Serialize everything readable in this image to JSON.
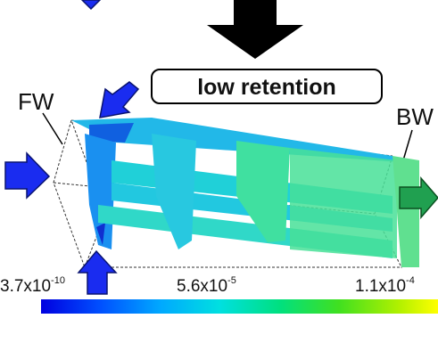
{
  "box_label": "low retention",
  "labels": {
    "fw": "FW",
    "bw": "BW"
  },
  "colorbar": {
    "labels": [
      {
        "base": "3.7x10",
        "exponent": "-10"
      },
      {
        "base": "5.6x10",
        "exponent": "-5"
      },
      {
        "base": "1.1x10",
        "exponent": "-4"
      }
    ]
  }
}
